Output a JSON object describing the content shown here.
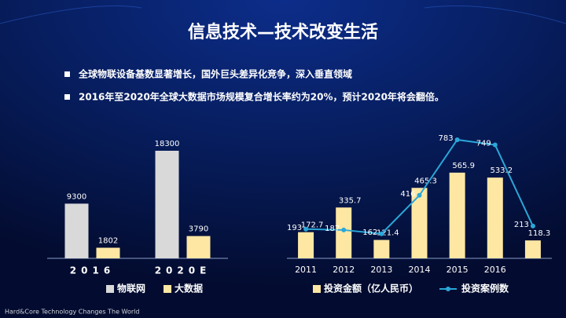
{
  "title": "信息技术—技术改变生活",
  "bullets": [
    "全球物联设备基数显著增长，国外巨头差异化竞争，深入垂直领域",
    "2016年至2020年全球大数据市场规模复合增长率约为20%，预计2020年将会翻倍。"
  ],
  "footer": "Hard&Core Technology Changes The World",
  "chart_data": [
    {
      "type": "bar",
      "categories": [
        "2016",
        "2020E"
      ],
      "series": [
        {
          "name": "物联网",
          "color": "#d9d9d9",
          "type": "bar",
          "values": [
            9300,
            18300
          ]
        },
        {
          "name": "大数据",
          "color": "#fde7a3",
          "type": "bar",
          "values": [
            1802,
            3790
          ]
        }
      ]
    },
    {
      "type": "bar-line",
      "categories": [
        "2011",
        "2012",
        "2013",
        "2014",
        "2015",
        "2016",
        null
      ],
      "series": [
        {
          "name": "投资金额（亿人民币）",
          "color": "#fde7a3",
          "type": "bar",
          "values": [
            172.7,
            335.7,
            121.4,
            465.3,
            565.9,
            533.2,
            118.3
          ]
        },
        {
          "name": "投资案例数",
          "color": "#2aa7d8",
          "type": "line",
          "values": [
            193,
            187,
            162,
            416,
            783,
            749,
            213
          ]
        }
      ]
    }
  ]
}
